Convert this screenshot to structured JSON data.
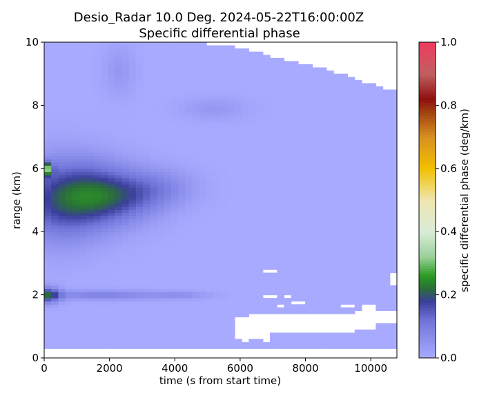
{
  "chart_data": {
    "type": "heatmap",
    "title": "Desio_Radar 10.0 Deg. 2024-05-22T16:00:00Z",
    "subtitle": "Specific differential phase",
    "xlabel": "time (s from start time)",
    "ylabel": "range (km)",
    "xlim": [
      0,
      10800
    ],
    "ylim": [
      0,
      10
    ],
    "x_ticks": [
      0,
      2000,
      4000,
      6000,
      8000,
      10000
    ],
    "x_tick_labels": [
      "0",
      "2000",
      "4000",
      "6000",
      "8000",
      "10000"
    ],
    "y_ticks": [
      0,
      2,
      4,
      6,
      8,
      10
    ],
    "y_tick_labels": [
      "0",
      "2",
      "4",
      "6",
      "8",
      "10"
    ],
    "grid": false,
    "colorbar": {
      "label": "specific differential phase (deg/km)",
      "range": [
        0.0,
        1.0
      ],
      "ticks": [
        0.0,
        0.2,
        0.4,
        0.6,
        0.8,
        1.0
      ],
      "tick_labels": [
        "0.0",
        "0.2",
        "0.4",
        "0.6",
        "0.8",
        "1.0"
      ],
      "position": "right",
      "stops": [
        {
          "v": 0.0,
          "color": "#a8aaff"
        },
        {
          "v": 0.12,
          "color": "#7074d8"
        },
        {
          "v": 0.18,
          "color": "#3a3e9a"
        },
        {
          "v": 0.22,
          "color": "#2a6e3a"
        },
        {
          "v": 0.26,
          "color": "#2a9a20"
        },
        {
          "v": 0.32,
          "color": "#9ad09a"
        },
        {
          "v": 0.4,
          "color": "#d8ecd8"
        },
        {
          "v": 0.5,
          "color": "#efe6b0"
        },
        {
          "v": 0.6,
          "color": "#f2c000"
        },
        {
          "v": 0.7,
          "color": "#d89020"
        },
        {
          "v": 0.78,
          "color": "#a04010"
        },
        {
          "v": 0.82,
          "color": "#901010"
        },
        {
          "v": 0.9,
          "color": "#c06060"
        },
        {
          "v": 1.0,
          "color": "#f03a60"
        }
      ]
    },
    "no_data_color": "#ffffff",
    "top_boundary": [
      {
        "x": 0,
        "y": 10.0
      },
      {
        "x": 4900,
        "y": 10.0
      },
      {
        "x": 5200,
        "y": 9.9
      },
      {
        "x": 5800,
        "y": 9.85
      },
      {
        "x": 6200,
        "y": 9.75
      },
      {
        "x": 6800,
        "y": 9.6
      },
      {
        "x": 7400,
        "y": 9.45
      },
      {
        "x": 8000,
        "y": 9.3
      },
      {
        "x": 8600,
        "y": 9.15
      },
      {
        "x": 9200,
        "y": 8.95
      },
      {
        "x": 9800,
        "y": 8.75
      },
      {
        "x": 10400,
        "y": 8.55
      },
      {
        "x": 10800,
        "y": 8.45
      }
    ],
    "gaps": [
      {
        "x": [
          0,
          10800
        ],
        "y": [
          0,
          0.28
        ]
      },
      {
        "x": [
          5800,
          6200
        ],
        "y": [
          0.6,
          1.35
        ]
      },
      {
        "x": [
          6200,
          7000
        ],
        "y": [
          0.6,
          1.4
        ]
      },
      {
        "x": [
          7000,
          8400
        ],
        "y": [
          0.8,
          1.4
        ]
      },
      {
        "x": [
          8400,
          9400
        ],
        "y": [
          0.85,
          1.45
        ]
      },
      {
        "x": [
          9400,
          10200
        ],
        "y": [
          0.95,
          1.5
        ]
      },
      {
        "x": [
          10200,
          10800
        ],
        "y": [
          1.05,
          1.55
        ]
      },
      {
        "x": [
          6000,
          6300
        ],
        "y": [
          0.5,
          0.6
        ]
      },
      {
        "x": [
          6700,
          7000
        ],
        "y": [
          0.5,
          0.6
        ]
      },
      {
        "x": [
          6800,
          7100
        ],
        "y": [
          2.7,
          2.8
        ]
      },
      {
        "x": [
          6750,
          7050
        ],
        "y": [
          1.9,
          2.05
        ]
      },
      {
        "x": [
          7050,
          7400
        ],
        "y": [
          1.65,
          1.75
        ]
      },
      {
        "x": [
          7400,
          7600
        ],
        "y": [
          1.95,
          2.05
        ]
      },
      {
        "x": [
          7500,
          8100
        ],
        "y": [
          1.7,
          1.8
        ]
      },
      {
        "x": [
          9100,
          9400
        ],
        "y": [
          1.6,
          1.7
        ]
      },
      {
        "x": [
          9800,
          10100
        ],
        "y": [
          1.55,
          1.7
        ]
      },
      {
        "x": [
          10500,
          10800
        ],
        "y": [
          2.3,
          2.7
        ]
      }
    ],
    "blobs": [
      {
        "x": 400,
        "y": 5.0,
        "sx": 1400,
        "sy": 1.3,
        "v": 0.16
      },
      {
        "x": 1600,
        "y": 5.2,
        "sx": 1200,
        "sy": 1.0,
        "v": 0.12
      },
      {
        "x": 2600,
        "y": 5.1,
        "sx": 1200,
        "sy": 0.8,
        "v": 0.09
      },
      {
        "x": 3600,
        "y": 5.4,
        "sx": 1100,
        "sy": 0.6,
        "v": 0.06
      },
      {
        "x": 5200,
        "y": 7.9,
        "sx": 1000,
        "sy": 0.35,
        "v": 0.04
      },
      {
        "x": 2300,
        "y": 9.1,
        "sx": 500,
        "sy": 0.8,
        "v": 0.04
      },
      {
        "x": 100,
        "y": 6.0,
        "sx": 150,
        "sy": 0.2,
        "v": 0.22
      },
      {
        "x": 100,
        "y": 2.0,
        "sx": 400,
        "sy": 0.25,
        "v": 0.19
      },
      {
        "x": 1800,
        "y": 2.0,
        "sx": 1800,
        "sy": 0.15,
        "v": 0.09
      },
      {
        "x": 4200,
        "y": 2.0,
        "sx": 900,
        "sy": 0.12,
        "v": 0.05
      }
    ]
  }
}
